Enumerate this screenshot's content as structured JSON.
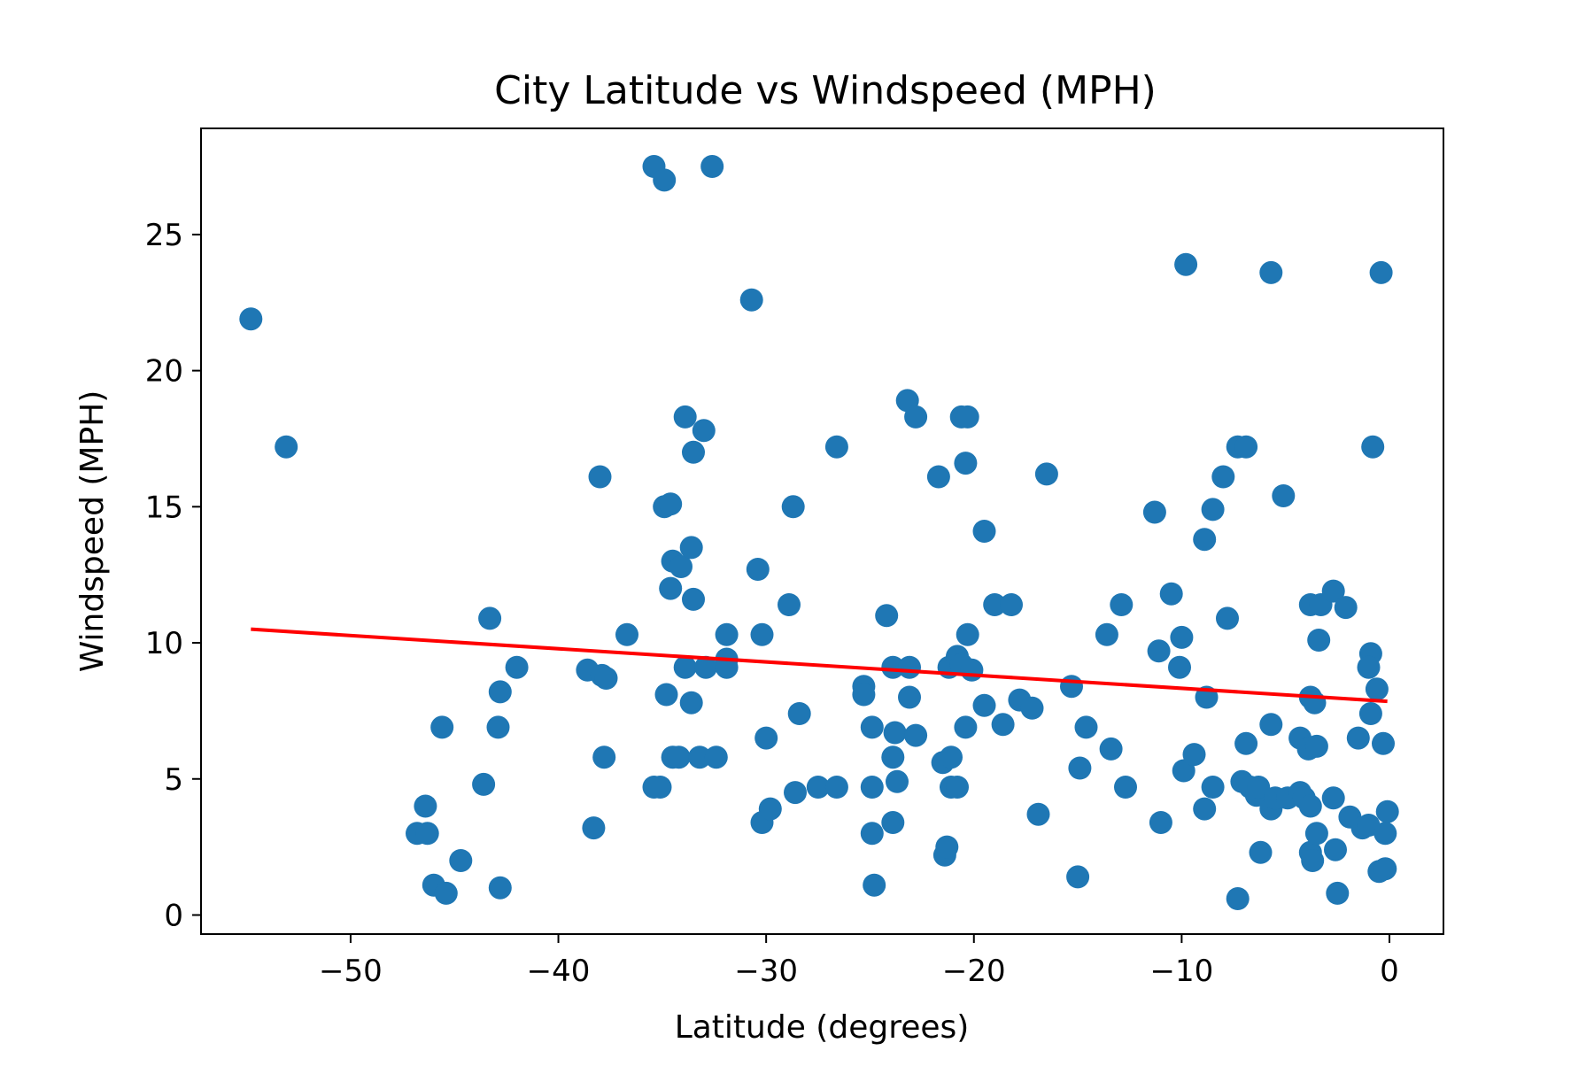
{
  "chart_data": {
    "type": "scatter",
    "title": "City Latitude vs Windspeed (MPH)",
    "xlabel": "Latitude (degrees)",
    "ylabel": "Windspeed (MPH)",
    "xlim": [
      -57.2,
      2.6
    ],
    "ylim": [
      -0.7,
      28.9
    ],
    "xticks": [
      -50,
      -40,
      -30,
      -20,
      -10,
      0
    ],
    "xtick_labels": [
      "−50",
      "−40",
      "−30",
      "−20",
      "−10",
      "0"
    ],
    "yticks": [
      0,
      5,
      10,
      15,
      20,
      25
    ],
    "ytick_labels": [
      "0",
      "5",
      "10",
      "15",
      "20",
      "25"
    ],
    "grid": false,
    "colors": {
      "points": "#1f77b4",
      "regression": "#ff0000"
    },
    "regression_line": {
      "x": [
        -54.8,
        -0.1
      ],
      "y": [
        10.5,
        7.85
      ]
    },
    "points": [
      [
        -54.8,
        21.9
      ],
      [
        -53.1,
        17.2
      ],
      [
        -46.8,
        3.0
      ],
      [
        -46.3,
        3.0
      ],
      [
        -46.4,
        4.0
      ],
      [
        -46.0,
        1.1
      ],
      [
        -45.6,
        6.9
      ],
      [
        -45.4,
        0.8
      ],
      [
        -44.7,
        2.0
      ],
      [
        -43.6,
        4.8
      ],
      [
        -43.3,
        10.9
      ],
      [
        -42.9,
        6.9
      ],
      [
        -42.8,
        8.2
      ],
      [
        -42.8,
        1.0
      ],
      [
        -42.0,
        9.1
      ],
      [
        -38.6,
        9.0
      ],
      [
        -38.3,
        3.2
      ],
      [
        -38.0,
        16.1
      ],
      [
        -37.9,
        8.8
      ],
      [
        -37.7,
        8.7
      ],
      [
        -37.8,
        5.8
      ],
      [
        -36.7,
        10.3
      ],
      [
        -35.4,
        27.5
      ],
      [
        -35.4,
        4.7
      ],
      [
        -35.1,
        4.7
      ],
      [
        -34.9,
        27.0
      ],
      [
        -34.9,
        15.0
      ],
      [
        -34.6,
        15.1
      ],
      [
        -34.6,
        12.0
      ],
      [
        -34.5,
        13.0
      ],
      [
        -34.1,
        12.8
      ],
      [
        -34.8,
        8.1
      ],
      [
        -34.5,
        5.8
      ],
      [
        -34.2,
        5.8
      ],
      [
        -33.9,
        18.3
      ],
      [
        -33.9,
        9.1
      ],
      [
        -33.6,
        13.5
      ],
      [
        -33.5,
        17.0
      ],
      [
        -33.5,
        11.6
      ],
      [
        -33.6,
        7.8
      ],
      [
        -33.0,
        17.8
      ],
      [
        -33.2,
        5.8
      ],
      [
        -32.9,
        9.1
      ],
      [
        -32.6,
        27.5
      ],
      [
        -32.4,
        5.8
      ],
      [
        -31.9,
        10.3
      ],
      [
        -31.9,
        9.4
      ],
      [
        -31.9,
        9.1
      ],
      [
        -30.7,
        22.6
      ],
      [
        -30.4,
        12.7
      ],
      [
        -30.2,
        10.3
      ],
      [
        -30.0,
        6.5
      ],
      [
        -30.2,
        3.4
      ],
      [
        -29.8,
        3.9
      ],
      [
        -28.9,
        11.4
      ],
      [
        -28.7,
        15.0
      ],
      [
        -28.6,
        4.5
      ],
      [
        -28.4,
        7.4
      ],
      [
        -27.5,
        4.7
      ],
      [
        -26.6,
        17.2
      ],
      [
        -26.6,
        4.7
      ],
      [
        -25.3,
        8.4
      ],
      [
        -25.3,
        8.1
      ],
      [
        -24.9,
        6.9
      ],
      [
        -24.9,
        4.7
      ],
      [
        -24.9,
        3.0
      ],
      [
        -24.8,
        1.1
      ],
      [
        -24.2,
        11.0
      ],
      [
        -23.9,
        9.1
      ],
      [
        -23.9,
        5.8
      ],
      [
        -23.8,
        6.7
      ],
      [
        -23.7,
        4.9
      ],
      [
        -23.9,
        3.4
      ],
      [
        -23.2,
        18.9
      ],
      [
        -23.1,
        9.1
      ],
      [
        -23.1,
        8.0
      ],
      [
        -22.8,
        18.3
      ],
      [
        -22.8,
        6.6
      ],
      [
        -21.7,
        16.1
      ],
      [
        -21.5,
        5.6
      ],
      [
        -21.4,
        2.2
      ],
      [
        -21.3,
        2.5
      ],
      [
        -21.2,
        9.1
      ],
      [
        -21.1,
        5.8
      ],
      [
        -21.1,
        4.7
      ],
      [
        -20.8,
        9.5
      ],
      [
        -20.6,
        9.2
      ],
      [
        -20.8,
        4.7
      ],
      [
        -20.6,
        18.3
      ],
      [
        -20.3,
        18.3
      ],
      [
        -20.4,
        16.6
      ],
      [
        -20.3,
        10.3
      ],
      [
        -20.4,
        6.9
      ],
      [
        -20.1,
        9.0
      ],
      [
        -19.5,
        14.1
      ],
      [
        -19.5,
        7.7
      ],
      [
        -19.0,
        11.4
      ],
      [
        -18.6,
        7.0
      ],
      [
        -18.2,
        11.4
      ],
      [
        -17.8,
        7.9
      ],
      [
        -17.2,
        7.6
      ],
      [
        -16.9,
        3.7
      ],
      [
        -16.5,
        16.2
      ],
      [
        -15.3,
        8.4
      ],
      [
        -14.9,
        5.4
      ],
      [
        -15.0,
        1.4
      ],
      [
        -14.6,
        6.9
      ],
      [
        -13.6,
        10.3
      ],
      [
        -13.4,
        6.1
      ],
      [
        -12.9,
        11.4
      ],
      [
        -12.7,
        4.7
      ],
      [
        -11.3,
        14.8
      ],
      [
        -11.1,
        9.7
      ],
      [
        -11.0,
        3.4
      ],
      [
        -10.5,
        11.8
      ],
      [
        -10.1,
        9.1
      ],
      [
        -10.0,
        10.2
      ],
      [
        -9.9,
        5.3
      ],
      [
        -9.8,
        23.9
      ],
      [
        -9.4,
        5.9
      ],
      [
        -8.9,
        13.8
      ],
      [
        -8.9,
        3.9
      ],
      [
        -8.8,
        8.0
      ],
      [
        -8.5,
        14.9
      ],
      [
        -8.5,
        4.7
      ],
      [
        -8.0,
        16.1
      ],
      [
        -7.8,
        10.9
      ],
      [
        -7.3,
        17.2
      ],
      [
        -6.9,
        17.2
      ],
      [
        -7.1,
        4.9
      ],
      [
        -6.9,
        6.3
      ],
      [
        -7.3,
        0.6
      ],
      [
        -6.7,
        4.7
      ],
      [
        -6.4,
        4.4
      ],
      [
        -6.3,
        4.7
      ],
      [
        -6.2,
        2.3
      ],
      [
        -5.7,
        23.6
      ],
      [
        -5.7,
        7.0
      ],
      [
        -5.7,
        3.9
      ],
      [
        -5.5,
        4.3
      ],
      [
        -5.1,
        15.4
      ],
      [
        -4.9,
        4.3
      ],
      [
        -4.3,
        6.5
      ],
      [
        -4.3,
        4.5
      ],
      [
        -4.1,
        4.3
      ],
      [
        -3.8,
        11.4
      ],
      [
        -3.8,
        8.0
      ],
      [
        -3.9,
        6.1
      ],
      [
        -3.8,
        4.0
      ],
      [
        -3.8,
        2.3
      ],
      [
        -3.7,
        2.0
      ],
      [
        -3.6,
        7.8
      ],
      [
        -3.4,
        10.1
      ],
      [
        -3.5,
        6.2
      ],
      [
        -3.5,
        3.0
      ],
      [
        -3.3,
        11.4
      ],
      [
        -2.7,
        11.9
      ],
      [
        -2.7,
        4.3
      ],
      [
        -2.6,
        2.4
      ],
      [
        -2.5,
        0.8
      ],
      [
        -2.1,
        11.3
      ],
      [
        -1.9,
        3.6
      ],
      [
        -1.5,
        6.5
      ],
      [
        -1.3,
        3.2
      ],
      [
        -1.0,
        3.3
      ],
      [
        -0.9,
        9.6
      ],
      [
        -1.0,
        9.1
      ],
      [
        -0.9,
        7.4
      ],
      [
        -0.8,
        17.2
      ],
      [
        -0.6,
        8.3
      ],
      [
        -0.4,
        23.6
      ],
      [
        -0.5,
        1.6
      ],
      [
        -0.2,
        1.7
      ],
      [
        -0.3,
        6.3
      ],
      [
        -0.2,
        3.0
      ],
      [
        -0.1,
        3.8
      ]
    ]
  }
}
